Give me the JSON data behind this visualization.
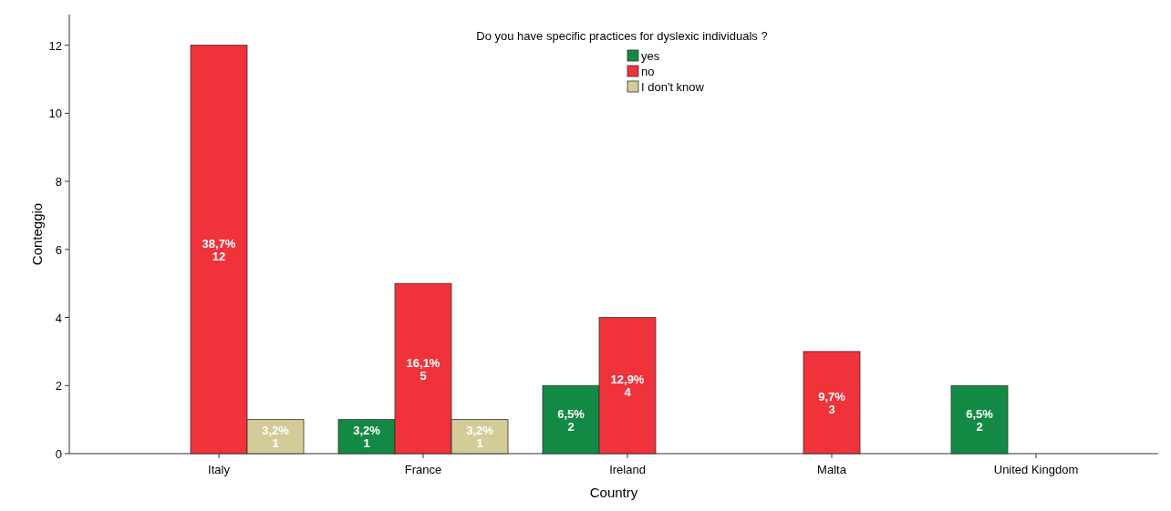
{
  "chart_data": {
    "type": "bar",
    "legend_title": "Do you have specific practices for dyslexic individuals ?",
    "xlabel": "Country",
    "ylabel": "Conteggio",
    "categories": [
      "Italy",
      "France",
      "Ireland",
      "Malta",
      "United Kingdom"
    ],
    "ylim": [
      0,
      12.9
    ],
    "yticks": [
      0,
      2,
      4,
      6,
      8,
      10,
      12
    ],
    "legend": "top",
    "series": [
      {
        "name": "yes",
        "color": "#138a44",
        "values": [
          null,
          1,
          2,
          null,
          2
        ],
        "value_labels": [
          null,
          "3,2%\n1",
          "6,5%\n2",
          null,
          "6,5%\n2"
        ]
      },
      {
        "name": "no",
        "color": "#f0323a",
        "values": [
          12,
          5,
          4,
          3,
          null
        ],
        "value_labels": [
          "38,7%\n12",
          "16,1%\n5",
          "12,9%\n4",
          "9,7%\n3",
          null
        ]
      },
      {
        "name": "I don't know",
        "color": "#d4cc98",
        "values": [
          1,
          1,
          null,
          null,
          null
        ],
        "value_labels": [
          "3,2%\n1",
          "3,2%\n1",
          null,
          null,
          null
        ]
      }
    ]
  }
}
